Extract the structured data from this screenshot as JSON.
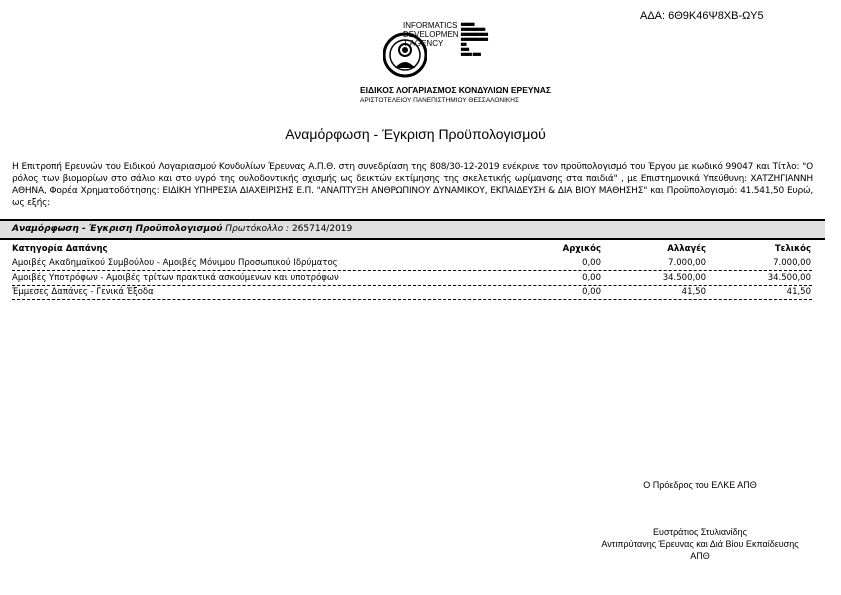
{
  "ada": "ΑΔΑ: 6Θ9Κ46Ψ8ΧΒ-ΩΥ5",
  "header": {
    "informatics_lines": [
      "INFORMATICS",
      "DEVELOPMEN",
      "T AGENCY"
    ],
    "organization": "ΕΙΔΙΚΟΣ ΛΟΓΑΡΙΑΣΜΟΣ ΚΟΝΔΥΛΙΩΝ ΕΡΕΥΝΑΣ",
    "university": "ΑΡΙΣΤΟΤΕΛΕΙΟΥ ΠΑΝΕΠΙΣΤΗΜΙΟΥ ΘΕΣΣΑΛΟΝΙΚΗΣ"
  },
  "title": "Αναμόρφωση - Έγκριση Προϋπολογισμού",
  "paragraph": "Η Επιτροπή Ερευνών του Ειδικού Λογαριασμού Κονδυλίων Έρευνας Α.Π.Θ. στη συνεδρίαση της 808/30-12-2019 ενέκρινε τον προϋπολογισμό του Έργου με κωδικό 99047 και Τίτλο: \"Ο ρόλος των βιομορίων στο σάλιο και στο υγρό της ουλοδοντικής σχισμής ως δεικτών εκτίμησης της σκελετικής ωρίμανσης στα παιδιά\" , με Επιστημονικά Υπεύθυνη: ΧΑΤΖΗΓΙΑΝΝΗ ΑΘΗΝΑ, Φορέα Χρηματοδότησης: ΕΙΔΙΚΗ ΥΠΗΡΕΣΙΑ ΔΙΑΧΕΙΡΙΣΗΣ Ε.Π. \"ΑΝΑΠΤΥΞΗ ΑΝΘΡΩΠΙΝΟΥ ΔΥΝΑΜΙΚΟΥ, ΕΚΠΑΙΔΕΥΣΗ & ΔΙΑ ΒΙΟΥ ΜΑΘΗΣΗΣ\" και Προϋπολογισμό: 41.541,50 Ευρώ, ως εξής:",
  "section": {
    "label": "Αναμόρφωση - Έγκριση Προϋπολογισμού",
    "protocol_label": "Πρωτόκολλο :",
    "protocol_value": "265714/2019"
  },
  "table": {
    "headers": [
      "Κατηγορία Δαπάνης",
      "Αρχικός",
      "Αλλαγές",
      "Τελικός"
    ],
    "rows": [
      [
        "Αμοιβές Ακαδημαϊκού Συμβούλου - Αμοιβές Μόνιμου Προσωπικού Ιδρύματος",
        "0,00",
        "7.000,00",
        "7.000,00"
      ],
      [
        "Αμοιβές Υποτρόφων - Αμοιβές τρίτων πρακτικά ασκούμενων και υποτρόφων",
        "0,00",
        "34.500,00",
        "34.500,00"
      ],
      [
        "Έμμεσες Δαπάνες - Γενικά Έξοδα",
        "0,00",
        "41,50",
        "41,50"
      ]
    ]
  },
  "signature": {
    "role": "Ο Πρόεδρος του ΕΛΚΕ ΑΠΘ",
    "name": "Ευστράτιος Στυλιανίδης",
    "position": "Αντιπρύτανης Έρευνας και Διά Βίου Εκπαίδευσης",
    "institution": "ΑΠΘ"
  }
}
